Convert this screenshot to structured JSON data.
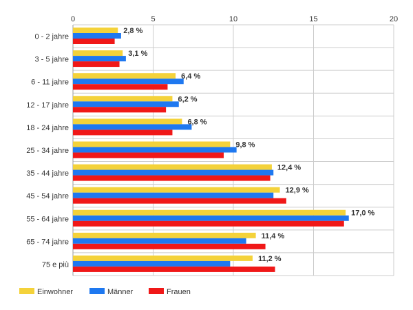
{
  "chart_data": {
    "type": "bar",
    "orientation": "horizontal",
    "categories": [
      "0 - 2 jahre",
      "3 - 5 jahre",
      "6 - 11 jahre",
      "12 - 17 jahre",
      "18 - 24 jahre",
      "25 - 34 jahre",
      "35 - 44 jahre",
      "45 - 54 jahre",
      "55 - 64 jahre",
      "65 - 74 jahre",
      "75 e più"
    ],
    "series": [
      {
        "name": "Einwohner",
        "color": "#f4d23a",
        "values": [
          2.8,
          3.1,
          6.4,
          6.2,
          6.8,
          9.8,
          12.4,
          12.9,
          17.0,
          11.4,
          11.2
        ]
      },
      {
        "name": "Männer",
        "color": "#1e78f0",
        "values": [
          3.0,
          3.3,
          6.9,
          6.6,
          7.4,
          10.2,
          12.5,
          12.5,
          17.2,
          10.8,
          9.8
        ]
      },
      {
        "name": "Frauen",
        "color": "#f01818",
        "values": [
          2.6,
          2.9,
          5.9,
          5.8,
          6.2,
          9.4,
          12.3,
          13.3,
          16.9,
          12.0,
          12.6
        ]
      }
    ],
    "data_labels": [
      "2,8 %",
      "3,1 %",
      "6,4 %",
      "6,2 %",
      "6,8 %",
      "9,8 %",
      "12,4 %",
      "12,9 %",
      "17,0 %",
      "11,4 %",
      "11,2 %"
    ],
    "x_ticks": [
      "0",
      "5",
      "10",
      "15",
      "20"
    ],
    "xlim": [
      0,
      20
    ],
    "grid": true,
    "axis_position": "top",
    "legend_position": "bottom-left"
  }
}
